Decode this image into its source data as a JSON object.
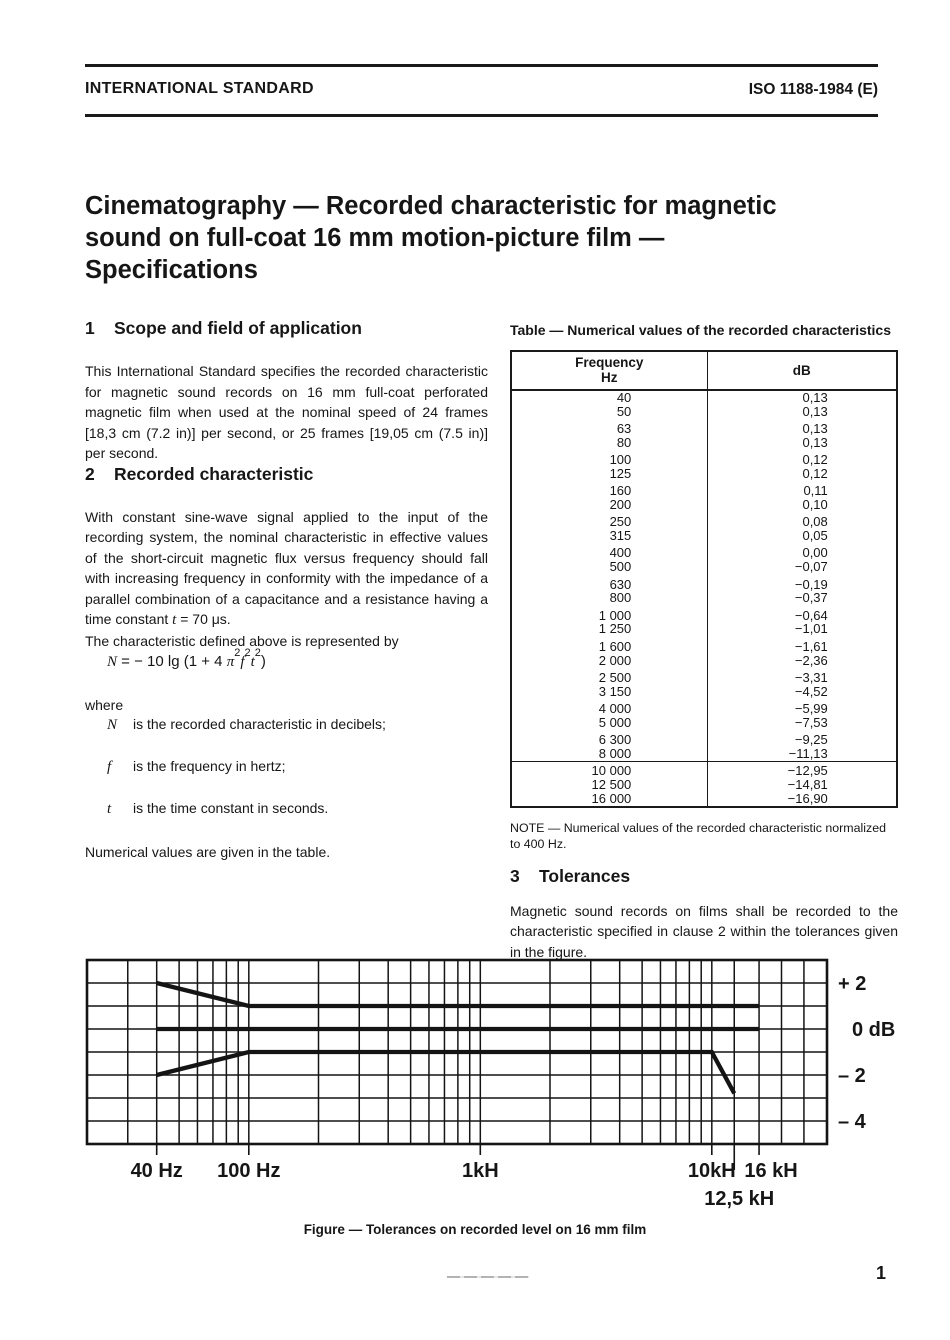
{
  "header": {
    "left": "INTERNATIONAL STANDARD",
    "right": "ISO 1188-1984 (E)"
  },
  "title": {
    "lines": [
      "Cinematography — Recorded characteristic for magnetic",
      "sound on full-coat 16 mm motion-picture film —",
      "Specifications"
    ]
  },
  "sections": {
    "s1": {
      "number": "1",
      "heading": "Scope and field of application",
      "body": "This International Standard specifies the recorded characteristic for magnetic sound records on 16 mm full-coat perforated magnetic film when used at the nominal speed of 24 frames [18,3 cm (7.2 in)] per second, or 25 frames [19,05 cm (7.5 in)] per second."
    },
    "s2": {
      "number": "2",
      "heading": "Recorded characteristic",
      "body_pre": "With constant sine-wave signal applied to the input of the recording system, the nominal characteristic in effective values of the short-circuit magnetic flux versus frequency should fall with increasing frequency in conformity with the impedance of a parallel combination of a capacitance and a resistance having a time constant ",
      "body_sym": "t",
      "body_post": " = 70 μs.",
      "intro": "The characteristic defined above is represented by",
      "formula": {
        "n": "N",
        "mid": " = − 10 lg (1 + 4 ",
        "pi": "π",
        "s1": "2",
        "f": "f",
        "s2": "2",
        "t": "t",
        "s3": "2",
        "end": ")"
      },
      "where_label": "where",
      "definitions": [
        {
          "symbol": "N",
          "text": "is the recorded characteristic in decibels;"
        },
        {
          "symbol": "f",
          "text": "is the frequency in hertz;"
        },
        {
          "symbol": "t",
          "text": "is the time constant in seconds."
        }
      ],
      "closing": "Numerical values are given in the table."
    },
    "s3": {
      "number": "3",
      "heading": "Tolerances",
      "body": "Magnetic sound records on films shall be recorded to the characteristic specified in clause 2 within the tolerances given in the figure."
    }
  },
  "table": {
    "caption": "Table — Numerical values of the recorded characteristics",
    "col1_header_line1": "Frequency",
    "col1_header_line2": "Hz",
    "col2_header": "dB",
    "groups": [
      [
        [
          "40",
          "0,13"
        ],
        [
          "50",
          "0,13"
        ]
      ],
      [
        [
          "63",
          "0,13"
        ],
        [
          "80",
          "0,13"
        ]
      ],
      [
        [
          "100",
          "0,12"
        ],
        [
          "125",
          "0,12"
        ]
      ],
      [
        [
          "160",
          "0,11"
        ],
        [
          "200",
          "0,10"
        ]
      ],
      [
        [
          "250",
          "0,08"
        ],
        [
          "315",
          "0,05"
        ]
      ],
      [
        [
          "400",
          "0,00"
        ],
        [
          "500",
          "−0,07"
        ]
      ],
      [
        [
          "630",
          "−0,19"
        ],
        [
          "800",
          "−0,37"
        ]
      ],
      [
        [
          "1 000",
          "−0,64"
        ],
        [
          "1 250",
          "−1,01"
        ]
      ],
      [
        [
          "1 600",
          "−1,61"
        ],
        [
          "2 000",
          "−2,36"
        ]
      ],
      [
        [
          "2 500",
          "−3,31"
        ],
        [
          "3 150",
          "−4,52"
        ]
      ],
      [
        [
          "4 000",
          "−5,99"
        ],
        [
          "5 000",
          "−7,53"
        ]
      ],
      [
        [
          "6 300",
          "−9,25"
        ],
        [
          "8 000",
          "−11,13"
        ]
      ],
      [
        [
          "10 000",
          "−12,95"
        ],
        [
          "12 500",
          "−14,81"
        ],
        [
          "16 000",
          "−16,90"
        ]
      ]
    ],
    "note": "NOTE — Numerical values of the recorded characteristic normalized to 400 Hz."
  },
  "figure": {
    "caption": "Figure — Tolerances on recorded level on 16 mm film"
  },
  "page": {
    "number": "1"
  },
  "chart_data": {
    "type": "line",
    "title": "Tolerances on recorded level on 16 mm film",
    "x_scale": "log",
    "x_unit": "Hz",
    "x_range": [
      20,
      31500
    ],
    "ylabel": "dB",
    "y_range": [
      -5,
      3
    ],
    "grid": true,
    "grid_frequencies": [
      30,
      40,
      50,
      60,
      70,
      80,
      90,
      100,
      200,
      300,
      400,
      500,
      600,
      700,
      800,
      900,
      1000,
      2000,
      3000,
      4000,
      5000,
      6000,
      7000,
      8000,
      9000,
      10000,
      12500,
      16000,
      20000,
      25000
    ],
    "grid_db": [
      2,
      1,
      0,
      -1,
      -2,
      -3,
      -4
    ],
    "x_ticks": [
      {
        "value": 40,
        "label": "40 Hz"
      },
      {
        "value": 100,
        "label": "100 Hz"
      },
      {
        "value": 1000,
        "label": "1kH"
      },
      {
        "value": 10000,
        "label": "10kH"
      },
      {
        "value": 12500,
        "label": "12,5 kH"
      },
      {
        "value": 16000,
        "label": "16 kH"
      }
    ],
    "y_ticks": [
      {
        "value": 2,
        "label": "+ 2"
      },
      {
        "value": 0,
        "label": "0 dB"
      },
      {
        "value": -2,
        "label": "– 2"
      },
      {
        "value": -4,
        "label": "– 4"
      }
    ],
    "series": [
      {
        "name": "upper tolerance limit",
        "points": [
          [
            40,
            2
          ],
          [
            100,
            1
          ],
          [
            16000,
            1
          ]
        ]
      },
      {
        "name": "nominal characteristic",
        "points": [
          [
            40,
            0
          ],
          [
            16000,
            0
          ]
        ]
      },
      {
        "name": "lower tolerance limit",
        "points": [
          [
            40,
            -2
          ],
          [
            100,
            -1
          ],
          [
            10000,
            -1
          ],
          [
            12500,
            -2.8
          ]
        ]
      }
    ],
    "line_color": "#141414"
  }
}
